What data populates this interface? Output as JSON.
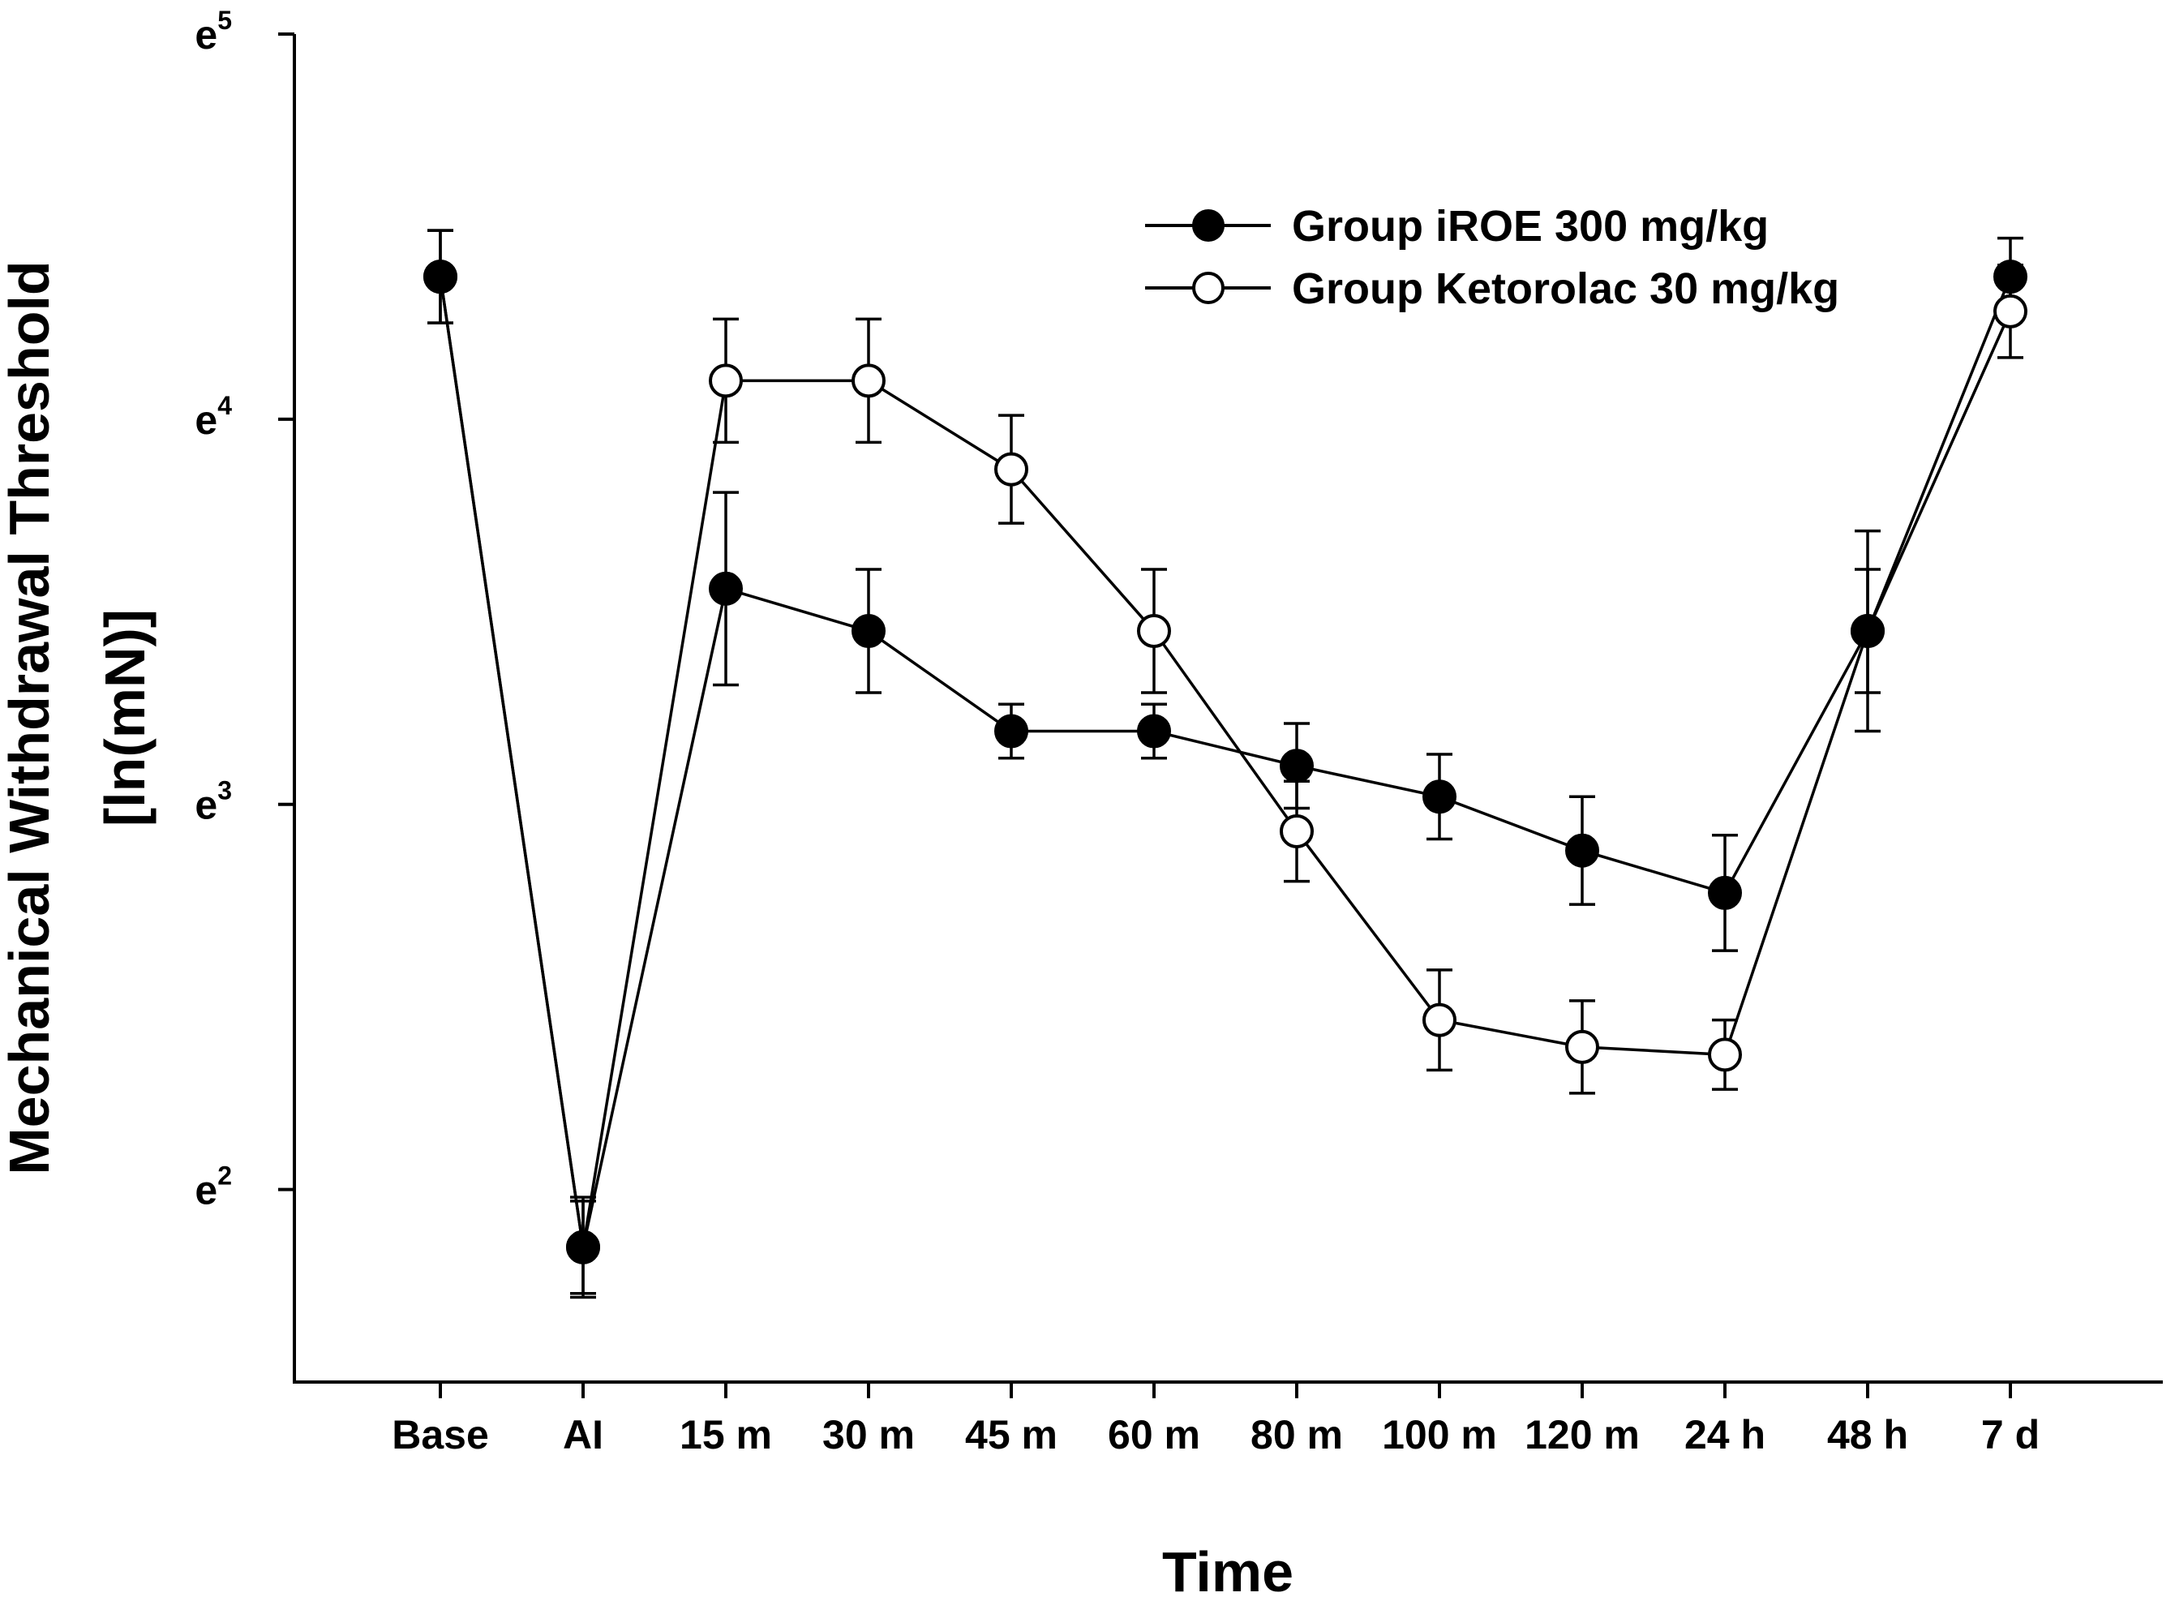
{
  "chart_data": {
    "type": "line",
    "title": "",
    "xlabel": "Time",
    "ylabel": [
      "Mechanical Withdrawal Threshold",
      "[ln(mN)]"
    ],
    "y_scale": "log (natural)",
    "ylim": [
      1.5,
      5
    ],
    "ytick_base": "e",
    "yticks": [
      {
        "exp": 2,
        "base": "e",
        "sup": "2"
      },
      {
        "exp": 3,
        "base": "e",
        "sup": "3"
      },
      {
        "exp": 4,
        "base": "e",
        "sup": "4"
      },
      {
        "exp": 5,
        "base": "e",
        "sup": "5"
      }
    ],
    "categories": [
      "Base",
      "AI",
      "15 m",
      "30 m",
      "45 m",
      "60 m",
      "80 m",
      "100 m",
      "120 m",
      "24 h",
      "48 h",
      "7 d"
    ],
    "series": [
      {
        "name": "Group iROE 300 mg/kg",
        "marker": "filled-circle",
        "values": [
          4.37,
          1.85,
          3.56,
          3.45,
          3.19,
          3.19,
          3.1,
          3.02,
          2.88,
          2.77,
          3.45,
          4.37
        ],
        "err": [
          0.12,
          0.12,
          0.25,
          0.16,
          0.07,
          0.07,
          0.11,
          0.11,
          0.14,
          0.15,
          0.16,
          0.1
        ]
      },
      {
        "name": "Group Ketorolac 30 mg/kg",
        "marker": "open-circle",
        "values": [
          4.37,
          1.85,
          4.1,
          4.1,
          3.87,
          3.45,
          2.93,
          2.44,
          2.37,
          2.35,
          3.45,
          4.28
        ],
        "err": [
          0.12,
          0.13,
          0.16,
          0.16,
          0.14,
          0.16,
          0.13,
          0.13,
          0.12,
          0.09,
          0.26,
          0.12
        ]
      }
    ],
    "legend_position": "top-right",
    "grid": false
  }
}
